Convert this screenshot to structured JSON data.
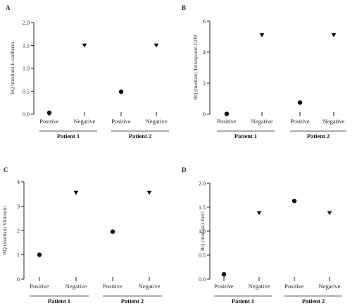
{
  "chart_data": [
    {
      "panel": "A",
      "type": "scatter",
      "ylabel": "RQ (median) E-cadherin",
      "ylim": [
        0,
        2.0
      ],
      "yticks": [
        "0.0",
        "0.5",
        "1.0",
        "1.5",
        "2.0"
      ],
      "categories": [
        "Positive",
        "Negative",
        "Positive",
        "Negative"
      ],
      "groups": [
        "Patient 1",
        "Patient 2"
      ],
      "values": [
        0.03,
        1.5,
        0.49,
        1.5
      ],
      "markers": [
        "circle",
        "triangle-down",
        "circle",
        "triangle-down"
      ]
    },
    {
      "panel": "B",
      "type": "scatter",
      "ylabel": "RQ (median) Tetraspanin CD9",
      "ylim": [
        0,
        6
      ],
      "yticks": [
        "0",
        "2",
        "4",
        "6"
      ],
      "categories": [
        "Positive",
        "Negative",
        "Positive",
        "Negative"
      ],
      "groups": [
        "Patient 1",
        "Patient 2"
      ],
      "values": [
        0.02,
        5.1,
        0.75,
        5.1
      ],
      "markers": [
        "circle",
        "triangle-down",
        "circle",
        "triangle-down"
      ]
    },
    {
      "panel": "C",
      "type": "scatter",
      "ylabel": "RQ (median) Vimentin",
      "ylim": [
        0,
        4
      ],
      "yticks": [
        "0",
        "1",
        "2",
        "3",
        "4"
      ],
      "categories": [
        "Positive",
        "Negative",
        "Positive",
        "Negative"
      ],
      "groups": [
        "Patient 1",
        "Patient 2"
      ],
      "values": [
        1.0,
        3.55,
        1.95,
        3.55
      ],
      "markers": [
        "circle",
        "triangle-down",
        "circle",
        "triangle-down"
      ]
    },
    {
      "panel": "D",
      "type": "scatter",
      "ylabel": "RQ (median) Ki67",
      "ylim": [
        0,
        2.0
      ],
      "yticks": [
        "0.0",
        "0.5",
        "1.0",
        "1.5",
        "2.0"
      ],
      "categories": [
        "Positive",
        "Negative",
        "Positive",
        "Negative"
      ],
      "groups": [
        "Patient 1",
        "Patient 2"
      ],
      "values": [
        0.1,
        1.38,
        1.63,
        1.38
      ],
      "markers": [
        "circle",
        "triangle-down",
        "circle",
        "triangle-down"
      ]
    }
  ]
}
